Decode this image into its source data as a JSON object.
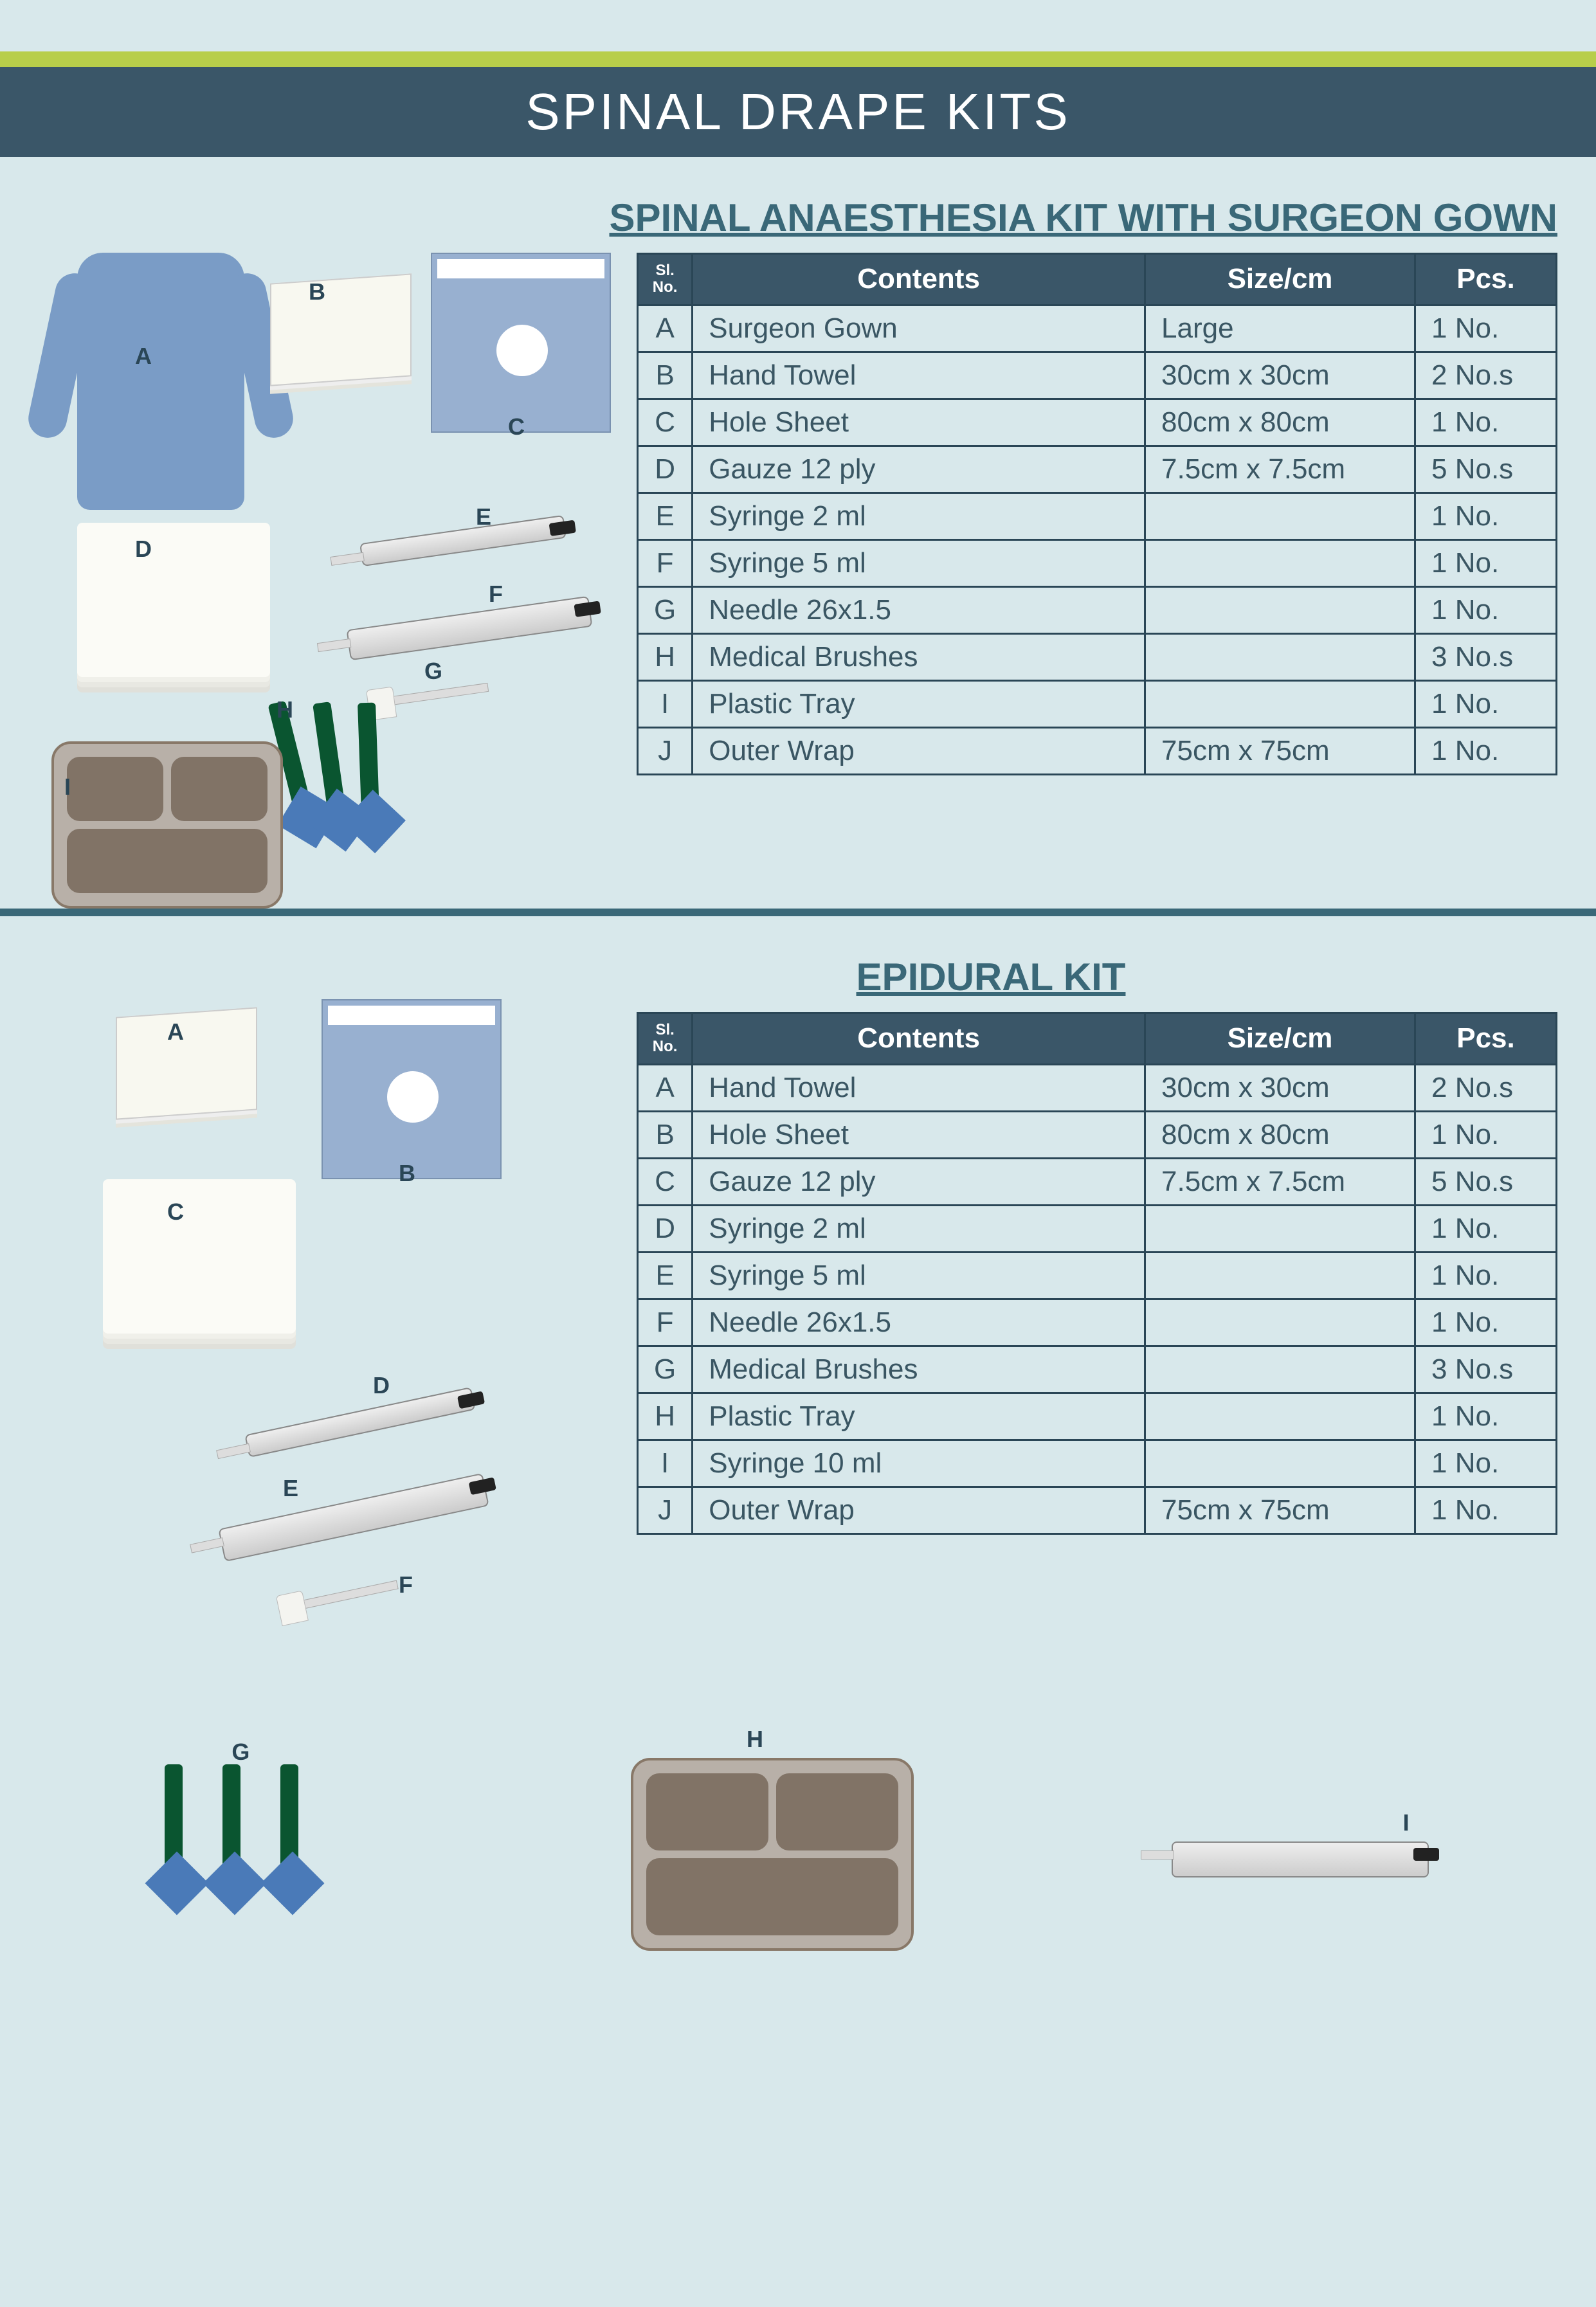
{
  "colors": {
    "page_bg": "#d8e8eb",
    "accent_bar": "#b8ce4a",
    "title_bar_bg": "#3a5668",
    "title_text": "#ffffff",
    "section_title": "#3a6878",
    "table_header_bg": "#3a5668",
    "table_border": "#2a4656",
    "table_text": "#3a5663",
    "divider": "#3a6878"
  },
  "main_title": "SPINAL DRAPE KITS",
  "section1": {
    "title": "SPINAL ANAESTHESIA KIT WITH SURGEON GOWN",
    "headers": {
      "sl": "Sl.\nNo.",
      "contents": "Contents",
      "size": "Size/cm",
      "pcs": "Pcs."
    },
    "rows": [
      {
        "sl": "A",
        "contents": "Surgeon Gown",
        "size": "Large",
        "pcs": "1 No."
      },
      {
        "sl": "B",
        "contents": "Hand Towel",
        "size": "30cm x 30cm",
        "pcs": "2 No.s"
      },
      {
        "sl": "C",
        "contents": "Hole Sheet",
        "size": "80cm x 80cm",
        "pcs": "1 No."
      },
      {
        "sl": "D",
        "contents": "Gauze 12 ply",
        "size": "7.5cm x 7.5cm",
        "pcs": "5 No.s"
      },
      {
        "sl": "E",
        "contents": "Syringe 2 ml",
        "size": "",
        "pcs": "1 No."
      },
      {
        "sl": "F",
        "contents": "Syringe 5 ml",
        "size": "",
        "pcs": "1 No."
      },
      {
        "sl": "G",
        "contents": "Needle 26x1.5",
        "size": "",
        "pcs": "1 No."
      },
      {
        "sl": "H",
        "contents": "Medical Brushes",
        "size": "",
        "pcs": "3 No.s"
      },
      {
        "sl": "I",
        "contents": "Plastic Tray",
        "size": "",
        "pcs": "1 No."
      },
      {
        "sl": "J",
        "contents": "Outer Wrap",
        "size": "75cm x 75cm",
        "pcs": "1 No."
      }
    ],
    "labels": {
      "A": "A",
      "B": "B",
      "C": "C",
      "D": "D",
      "E": "E",
      "F": "F",
      "G": "G",
      "H": "H",
      "I": "I"
    }
  },
  "section2": {
    "title": "EPIDURAL KIT",
    "headers": {
      "sl": "Sl.\nNo.",
      "contents": "Contents",
      "size": "Size/cm",
      "pcs": "Pcs."
    },
    "rows": [
      {
        "sl": "A",
        "contents": "Hand Towel",
        "size": "30cm x 30cm",
        "pcs": "2 No.s"
      },
      {
        "sl": "B",
        "contents": "Hole Sheet",
        "size": "80cm x 80cm",
        "pcs": "1 No."
      },
      {
        "sl": "C",
        "contents": "Gauze 12 ply",
        "size": "7.5cm x 7.5cm",
        "pcs": "5 No.s"
      },
      {
        "sl": "D",
        "contents": "Syringe 2 ml",
        "size": "",
        "pcs": "1 No."
      },
      {
        "sl": "E",
        "contents": "Syringe 5 ml",
        "size": "",
        "pcs": "1 No."
      },
      {
        "sl": "F",
        "contents": "Needle 26x1.5",
        "size": "",
        "pcs": "1 No."
      },
      {
        "sl": "G",
        "contents": "Medical Brushes",
        "size": "",
        "pcs": "3 No.s"
      },
      {
        "sl": "H",
        "contents": "Plastic Tray",
        "size": "",
        "pcs": "1 No."
      },
      {
        "sl": "I",
        "contents": "Syringe 10 ml",
        "size": "",
        "pcs": "1 No."
      },
      {
        "sl": "J",
        "contents": "Outer Wrap",
        "size": "75cm x 75cm",
        "pcs": "1 No."
      }
    ],
    "labels": {
      "A": "A",
      "B": "B",
      "C": "C",
      "D": "D",
      "E": "E",
      "F": "F",
      "G": "G",
      "H": "H",
      "I": "I"
    }
  }
}
